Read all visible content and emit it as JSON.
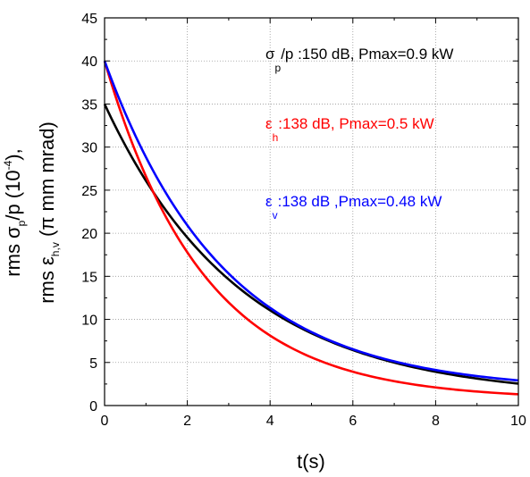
{
  "chart_data": {
    "type": "line",
    "xlabel": "t(s)",
    "ylabel_line1": "rms σp/p  (10⁻⁴),",
    "ylabel_line2": "rms εh,v  (π mm mrad)",
    "xlim": [
      0,
      10
    ],
    "ylim": [
      0,
      45
    ],
    "xticks": [
      "0",
      "2",
      "4",
      "6",
      "8",
      "10"
    ],
    "yticks": [
      "0",
      "5",
      "10",
      "15",
      "20",
      "25",
      "30",
      "35",
      "40",
      "45"
    ],
    "grid": true,
    "series": [
      {
        "name": "σp/p :150 dB, Pmax=0.9 kW",
        "color": "#000000",
        "start": 35,
        "tau": 3.3,
        "final": 0.9,
        "x": [
          0,
          1,
          2,
          3,
          4,
          5,
          6,
          7,
          8,
          9,
          10
        ],
        "y": [
          35,
          26.3,
          19.9,
          15.2,
          11.8,
          9.0,
          6.9,
          5.2,
          3.9,
          3.0,
          2.3
        ]
      },
      {
        "name": "εh :138 dB, Pmax=0.5 kW",
        "color": "#ff0000",
        "start": 40,
        "tau": 2.4,
        "final": 0.7,
        "x": [
          0,
          1,
          2,
          3,
          4,
          5,
          6,
          7,
          8,
          9,
          10
        ],
        "y": [
          40,
          26.6,
          17.8,
          12.5,
          9.6,
          7.1,
          5.0,
          3.8,
          2.8,
          2.3,
          2.0
        ]
      },
      {
        "name": "εv :138 dB ,Pmax=0.48 kW",
        "color": "#0000ff",
        "start": 40,
        "tau": 2.9,
        "final": 1.7,
        "x": [
          0,
          1,
          2,
          3,
          4,
          5,
          6,
          7,
          8,
          9,
          10
        ],
        "y": [
          40,
          28.5,
          20.8,
          15.6,
          11.9,
          9.0,
          6.8,
          5.4,
          4.3,
          3.4,
          2.9
        ]
      }
    ],
    "annotations": [
      {
        "symbol": "σ",
        "sub": "p",
        "text": "/p :150 dB, Pmax=0.9 kW",
        "color": "#000000"
      },
      {
        "symbol": "ε",
        "sub": "h",
        "text": ":138 dB, Pmax=0.5 kW",
        "color": "#ff0000"
      },
      {
        "symbol": "ε",
        "sub": "v",
        "text": ":138 dB ,Pmax=0.48 kW",
        "color": "#0000ff"
      }
    ]
  }
}
